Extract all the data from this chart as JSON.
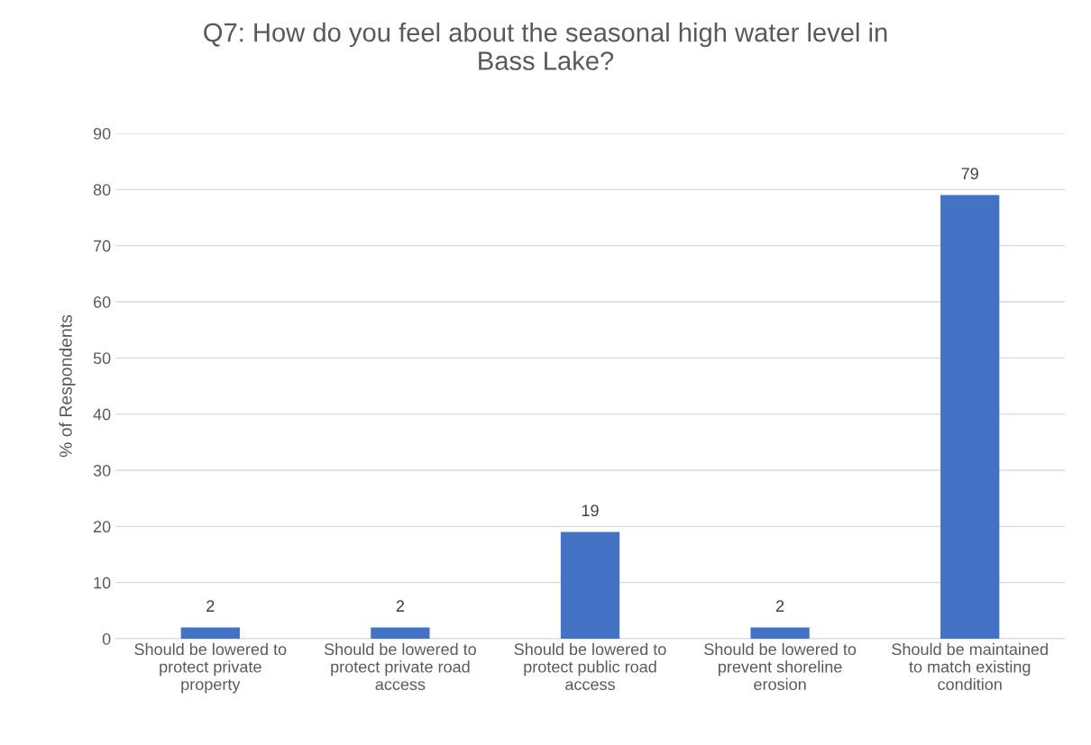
{
  "chart_data": {
    "type": "bar",
    "title": "Q7: How do you feel about the seasonal high water level in Bass Lake?",
    "ylabel": "% of Respondents",
    "categories": [
      "Should be lowered to protect private property",
      "Should be lowered to protect private road access",
      "Should be lowered to protect public road access",
      "Should be lowered to prevent shoreline erosion",
      "Should be maintained to match existing condition"
    ],
    "values": [
      2,
      2,
      19,
      2,
      79
    ],
    "color": "#4472c4",
    "ylim": [
      0,
      90
    ],
    "yticks": [
      0,
      10,
      20,
      30,
      40,
      50,
      60,
      70,
      80,
      90
    ],
    "grid": "y",
    "data_labels": true,
    "legend": false
  }
}
